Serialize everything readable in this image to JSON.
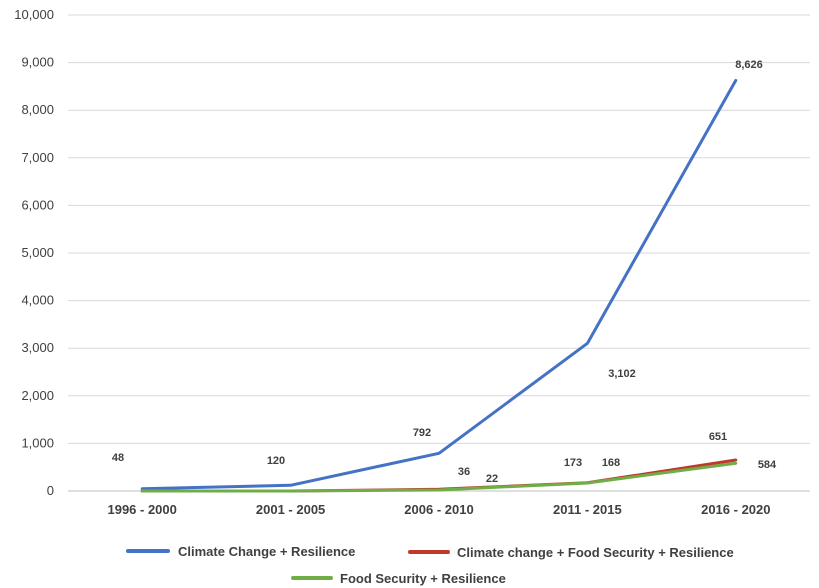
{
  "chart_data": {
    "type": "line",
    "categories": [
      "1996 - 2000",
      "2001 - 2005",
      "2006 - 2010",
      "2011 - 2015",
      "2016 - 2020"
    ],
    "series": [
      {
        "name": "Climate Change + Resilience",
        "color": "#4472c4",
        "values": [
          48,
          120,
          792,
          3102,
          8626
        ],
        "labels": [
          "48",
          "120",
          "792",
          "3,102",
          "8,626"
        ]
      },
      {
        "name": "Climate change + Food Security + Resilience",
        "color": "#c0392b",
        "values": [
          0,
          0,
          36,
          173,
          651
        ],
        "labels": [
          "",
          "",
          "36",
          "173",
          "651"
        ]
      },
      {
        "name": "Food Security + Resilience",
        "color": "#70ad47",
        "values": [
          0,
          0,
          22,
          168,
          584
        ],
        "labels": [
          "",
          "",
          "22",
          "168",
          "584"
        ]
      }
    ],
    "y_ticks": [
      "0",
      "1,000",
      "2,000",
      "3,000",
      "4,000",
      "5,000",
      "6,000",
      "7,000",
      "8,000",
      "9,000",
      "10,000"
    ],
    "ylim": [
      0,
      10000
    ],
    "grid": true,
    "legend_position": "bottom",
    "title": "",
    "xlabel": "",
    "ylabel": ""
  }
}
